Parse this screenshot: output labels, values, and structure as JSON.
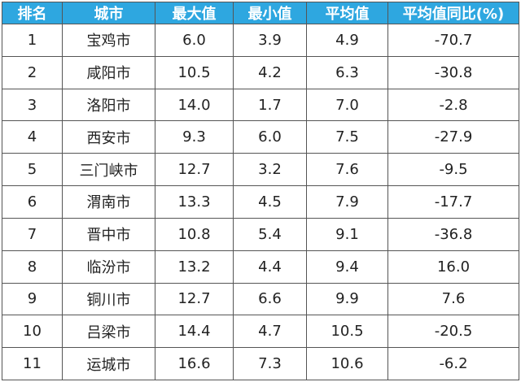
{
  "table": {
    "header": [
      "排名",
      "城市",
      "最大值",
      "最小值",
      "平均值",
      "平均值同比(%)"
    ],
    "rows": [
      [
        "1",
        "宝鸡市",
        "6.0",
        "3.9",
        "4.9",
        "-70.7"
      ],
      [
        "2",
        "咸阳市",
        "10.5",
        "4.2",
        "6.3",
        "-30.8"
      ],
      [
        "3",
        "洛阳市",
        "14.0",
        "1.7",
        "7.0",
        "-2.8"
      ],
      [
        "4",
        "西安市",
        "9.3",
        "6.0",
        "7.5",
        "-27.9"
      ],
      [
        "5",
        "三门峡市",
        "12.7",
        "3.2",
        "7.6",
        "-9.5"
      ],
      [
        "6",
        "渭南市",
        "13.3",
        "4.5",
        "7.9",
        "-17.7"
      ],
      [
        "7",
        "晋中市",
        "10.8",
        "5.4",
        "9.1",
        "-36.8"
      ],
      [
        "8",
        "临汾市",
        "13.2",
        "4.4",
        "9.4",
        "16.0"
      ],
      [
        "9",
        "铜川市",
        "12.7",
        "6.6",
        "9.9",
        "7.6"
      ],
      [
        "10",
        "吕梁市",
        "14.4",
        "4.7",
        "10.5",
        "-20.5"
      ],
      [
        "11",
        "运城市",
        "16.6",
        "7.3",
        "10.6",
        "-6.2"
      ]
    ]
  }
}
